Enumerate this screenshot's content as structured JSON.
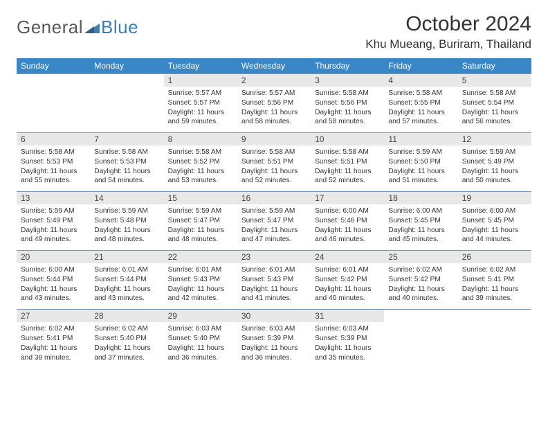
{
  "brand": {
    "part1": "General",
    "part2": "Blue"
  },
  "title": "October 2024",
  "location": "Khu Mueang, Buriram, Thailand",
  "colors": {
    "header_bg": "#3a87c7",
    "header_text": "#ffffff",
    "daynum_bg": "#e8e8e8",
    "day_border": "#7a9abb",
    "logo_blue": "#3a7fb5"
  },
  "weekdays": [
    "Sunday",
    "Monday",
    "Tuesday",
    "Wednesday",
    "Thursday",
    "Friday",
    "Saturday"
  ],
  "weeks": [
    [
      null,
      null,
      {
        "n": "1",
        "sr": "5:57 AM",
        "ss": "5:57 PM",
        "dl": "11 hours and 59 minutes."
      },
      {
        "n": "2",
        "sr": "5:57 AM",
        "ss": "5:56 PM",
        "dl": "11 hours and 58 minutes."
      },
      {
        "n": "3",
        "sr": "5:58 AM",
        "ss": "5:56 PM",
        "dl": "11 hours and 58 minutes."
      },
      {
        "n": "4",
        "sr": "5:58 AM",
        "ss": "5:55 PM",
        "dl": "11 hours and 57 minutes."
      },
      {
        "n": "5",
        "sr": "5:58 AM",
        "ss": "5:54 PM",
        "dl": "11 hours and 56 minutes."
      }
    ],
    [
      {
        "n": "6",
        "sr": "5:58 AM",
        "ss": "5:53 PM",
        "dl": "11 hours and 55 minutes."
      },
      {
        "n": "7",
        "sr": "5:58 AM",
        "ss": "5:53 PM",
        "dl": "11 hours and 54 minutes."
      },
      {
        "n": "8",
        "sr": "5:58 AM",
        "ss": "5:52 PM",
        "dl": "11 hours and 53 minutes."
      },
      {
        "n": "9",
        "sr": "5:58 AM",
        "ss": "5:51 PM",
        "dl": "11 hours and 52 minutes."
      },
      {
        "n": "10",
        "sr": "5:58 AM",
        "ss": "5:51 PM",
        "dl": "11 hours and 52 minutes."
      },
      {
        "n": "11",
        "sr": "5:59 AM",
        "ss": "5:50 PM",
        "dl": "11 hours and 51 minutes."
      },
      {
        "n": "12",
        "sr": "5:59 AM",
        "ss": "5:49 PM",
        "dl": "11 hours and 50 minutes."
      }
    ],
    [
      {
        "n": "13",
        "sr": "5:59 AM",
        "ss": "5:49 PM",
        "dl": "11 hours and 49 minutes."
      },
      {
        "n": "14",
        "sr": "5:59 AM",
        "ss": "5:48 PM",
        "dl": "11 hours and 48 minutes."
      },
      {
        "n": "15",
        "sr": "5:59 AM",
        "ss": "5:47 PM",
        "dl": "11 hours and 48 minutes."
      },
      {
        "n": "16",
        "sr": "5:59 AM",
        "ss": "5:47 PM",
        "dl": "11 hours and 47 minutes."
      },
      {
        "n": "17",
        "sr": "6:00 AM",
        "ss": "5:46 PM",
        "dl": "11 hours and 46 minutes."
      },
      {
        "n": "18",
        "sr": "6:00 AM",
        "ss": "5:45 PM",
        "dl": "11 hours and 45 minutes."
      },
      {
        "n": "19",
        "sr": "6:00 AM",
        "ss": "5:45 PM",
        "dl": "11 hours and 44 minutes."
      }
    ],
    [
      {
        "n": "20",
        "sr": "6:00 AM",
        "ss": "5:44 PM",
        "dl": "11 hours and 43 minutes."
      },
      {
        "n": "21",
        "sr": "6:01 AM",
        "ss": "5:44 PM",
        "dl": "11 hours and 43 minutes."
      },
      {
        "n": "22",
        "sr": "6:01 AM",
        "ss": "5:43 PM",
        "dl": "11 hours and 42 minutes."
      },
      {
        "n": "23",
        "sr": "6:01 AM",
        "ss": "5:43 PM",
        "dl": "11 hours and 41 minutes."
      },
      {
        "n": "24",
        "sr": "6:01 AM",
        "ss": "5:42 PM",
        "dl": "11 hours and 40 minutes."
      },
      {
        "n": "25",
        "sr": "6:02 AM",
        "ss": "5:42 PM",
        "dl": "11 hours and 40 minutes."
      },
      {
        "n": "26",
        "sr": "6:02 AM",
        "ss": "5:41 PM",
        "dl": "11 hours and 39 minutes."
      }
    ],
    [
      {
        "n": "27",
        "sr": "6:02 AM",
        "ss": "5:41 PM",
        "dl": "11 hours and 38 minutes."
      },
      {
        "n": "28",
        "sr": "6:02 AM",
        "ss": "5:40 PM",
        "dl": "11 hours and 37 minutes."
      },
      {
        "n": "29",
        "sr": "6:03 AM",
        "ss": "5:40 PM",
        "dl": "11 hours and 36 minutes."
      },
      {
        "n": "30",
        "sr": "6:03 AM",
        "ss": "5:39 PM",
        "dl": "11 hours and 36 minutes."
      },
      {
        "n": "31",
        "sr": "6:03 AM",
        "ss": "5:39 PM",
        "dl": "11 hours and 35 minutes."
      },
      null,
      null
    ]
  ],
  "labels": {
    "sunrise": "Sunrise: ",
    "sunset": "Sunset: ",
    "daylight": "Daylight: "
  }
}
